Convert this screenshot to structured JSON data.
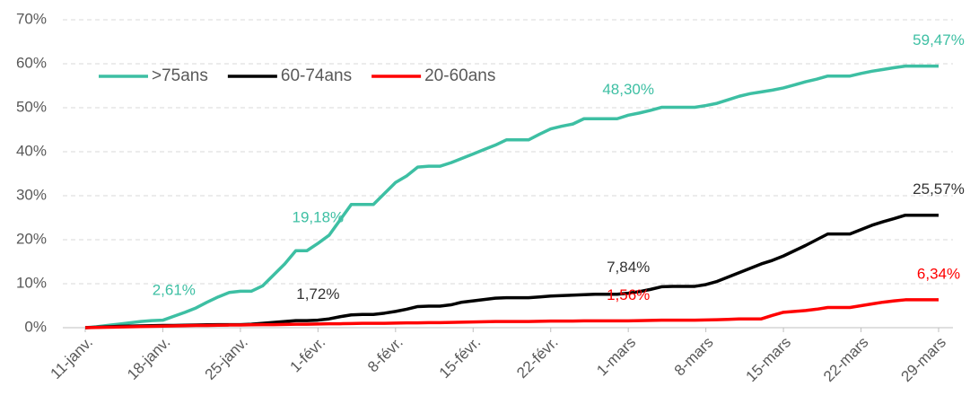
{
  "chart_data": {
    "type": "line",
    "categories": [
      "11-janv.",
      null,
      null,
      null,
      null,
      null,
      null,
      "18-janv.",
      null,
      null,
      null,
      null,
      null,
      null,
      "25-janv.",
      null,
      null,
      null,
      null,
      null,
      null,
      "1-févr.",
      null,
      null,
      null,
      null,
      null,
      null,
      "8-févr.",
      null,
      null,
      null,
      null,
      null,
      null,
      "15-févr.",
      null,
      null,
      null,
      null,
      null,
      null,
      "22-févr.",
      null,
      null,
      null,
      null,
      null,
      null,
      "1-mars",
      null,
      null,
      null,
      null,
      null,
      null,
      "8-mars",
      null,
      null,
      null,
      null,
      null,
      null,
      "15-mars",
      null,
      null,
      null,
      null,
      null,
      null,
      "22-mars",
      null,
      null,
      null,
      null,
      null,
      null,
      "29-mars"
    ],
    "ylim": [
      0,
      70
    ],
    "yticks": [
      {
        "value": 0,
        "label": "0%"
      },
      {
        "value": 10,
        "label": "10%"
      },
      {
        "value": 20,
        "label": "20%"
      },
      {
        "value": 30,
        "label": "30%"
      },
      {
        "value": 40,
        "label": "40%"
      },
      {
        "value": 50,
        "label": "50%"
      },
      {
        "value": 60,
        "label": "60%"
      },
      {
        "value": 70,
        "label": "70%"
      }
    ],
    "grid": true,
    "legend": "upper left",
    "series": [
      {
        "name": ">75ans",
        "color": "#3dbfa3",
        "label_color": "#3dbfa3",
        "values": [
          0,
          0.2,
          0.5,
          0.8,
          1.1,
          1.4,
          1.6,
          1.7,
          2.61,
          3.5,
          4.5,
          5.8,
          7,
          8,
          8.3,
          8.3,
          9.5,
          12,
          14.5,
          17.5,
          17.5,
          19.18,
          21,
          24.5,
          28,
          28,
          28,
          30.5,
          33,
          34.5,
          36.5,
          36.7,
          36.7,
          37.5,
          38.5,
          39.5,
          40.5,
          41.5,
          42.7,
          42.7,
          42.7,
          44,
          45.2,
          45.8,
          46.3,
          47.5,
          47.5,
          47.5,
          47.5,
          48.3,
          48.8,
          49.4,
          50.1,
          50.1,
          50.1,
          50.1,
          50.5,
          51,
          51.8,
          52.6,
          53.2,
          53.6,
          54,
          54.5,
          55.2,
          55.9,
          56.5,
          57.2,
          57.2,
          57.2,
          57.8,
          58.3,
          58.7,
          59.1,
          59.47,
          59.47,
          59.47,
          59.47
        ],
        "value_labels": [
          null,
          null,
          null,
          null,
          null,
          null,
          null,
          null,
          "2,61%",
          null,
          null,
          null,
          null,
          null,
          null,
          null,
          null,
          null,
          null,
          null,
          null,
          "19,18%",
          null,
          null,
          null,
          null,
          null,
          null,
          null,
          null,
          null,
          null,
          null,
          null,
          null,
          null,
          null,
          null,
          null,
          null,
          null,
          null,
          null,
          null,
          null,
          null,
          null,
          null,
          null,
          "48,30%",
          null,
          null,
          null,
          null,
          null,
          null,
          null,
          null,
          null,
          null,
          null,
          null,
          null,
          null,
          null,
          null,
          null,
          null,
          null,
          null,
          null,
          null,
          null,
          null,
          null,
          null,
          null,
          "59,47%"
        ]
      },
      {
        "name": "60-74ans",
        "color": "#000000",
        "label_color": "#333333",
        "values": [
          0,
          0.1,
          0.2,
          0.3,
          0.35,
          0.4,
          0.45,
          0.5,
          0.5,
          0.55,
          0.6,
          0.65,
          0.7,
          0.7,
          0.7,
          0.8,
          1,
          1.2,
          1.4,
          1.6,
          1.6,
          1.72,
          2,
          2.5,
          2.9,
          3,
          3,
          3.3,
          3.7,
          4.2,
          4.8,
          4.9,
          4.9,
          5.2,
          5.8,
          6.1,
          6.4,
          6.7,
          6.8,
          6.8,
          6.8,
          7,
          7.2,
          7.3,
          7.4,
          7.5,
          7.6,
          7.6,
          7.6,
          7.84,
          8.2,
          8.7,
          9.3,
          9.4,
          9.4,
          9.4,
          9.8,
          10.5,
          11.5,
          12.5,
          13.5,
          14.5,
          15.3,
          16.3,
          17.5,
          18.7,
          20,
          21.3,
          21.3,
          21.3,
          22.3,
          23.3,
          24.1,
          24.8,
          25.57,
          25.57,
          25.57,
          25.57
        ],
        "value_labels": [
          null,
          null,
          null,
          null,
          null,
          null,
          null,
          null,
          null,
          null,
          null,
          null,
          null,
          null,
          null,
          null,
          null,
          null,
          null,
          null,
          null,
          "1,72%",
          null,
          null,
          null,
          null,
          null,
          null,
          null,
          null,
          null,
          null,
          null,
          null,
          null,
          null,
          null,
          null,
          null,
          null,
          null,
          null,
          null,
          null,
          null,
          null,
          null,
          null,
          null,
          "7,84%",
          null,
          null,
          null,
          null,
          null,
          null,
          null,
          null,
          null,
          null,
          null,
          null,
          null,
          null,
          null,
          null,
          null,
          null,
          null,
          null,
          null,
          null,
          null,
          null,
          null,
          null,
          null,
          "25,57%"
        ]
      },
      {
        "name": "20-60ans",
        "color": "#ff0000",
        "label_color": "#ff0000",
        "values": [
          0,
          0.05,
          0.1,
          0.15,
          0.2,
          0.25,
          0.3,
          0.35,
          0.4,
          0.45,
          0.5,
          0.5,
          0.55,
          0.6,
          0.6,
          0.65,
          0.7,
          0.7,
          0.75,
          0.8,
          0.8,
          0.85,
          0.9,
          0.9,
          0.95,
          1,
          1,
          1,
          1.05,
          1.1,
          1.1,
          1.15,
          1.15,
          1.2,
          1.25,
          1.3,
          1.35,
          1.4,
          1.4,
          1.4,
          1.4,
          1.45,
          1.5,
          1.5,
          1.5,
          1.55,
          1.55,
          1.55,
          1.55,
          1.56,
          1.6,
          1.65,
          1.7,
          1.7,
          1.7,
          1.7,
          1.75,
          1.8,
          1.9,
          2,
          2,
          2,
          2.8,
          3.5,
          3.7,
          3.9,
          4.2,
          4.6,
          4.6,
          4.6,
          5,
          5.4,
          5.8,
          6.1,
          6.34,
          6.34,
          6.34,
          6.34
        ],
        "value_labels": [
          null,
          null,
          null,
          null,
          null,
          null,
          null,
          null,
          null,
          null,
          null,
          null,
          null,
          null,
          null,
          null,
          null,
          null,
          null,
          null,
          null,
          null,
          null,
          null,
          null,
          null,
          null,
          null,
          null,
          null,
          null,
          null,
          null,
          null,
          null,
          null,
          null,
          null,
          null,
          null,
          null,
          null,
          null,
          null,
          null,
          null,
          null,
          null,
          null,
          "1,56%",
          null,
          null,
          null,
          null,
          null,
          null,
          null,
          null,
          null,
          null,
          null,
          null,
          null,
          null,
          null,
          null,
          null,
          null,
          null,
          null,
          null,
          null,
          null,
          null,
          null,
          null,
          null,
          "6,34%"
        ]
      }
    ]
  }
}
